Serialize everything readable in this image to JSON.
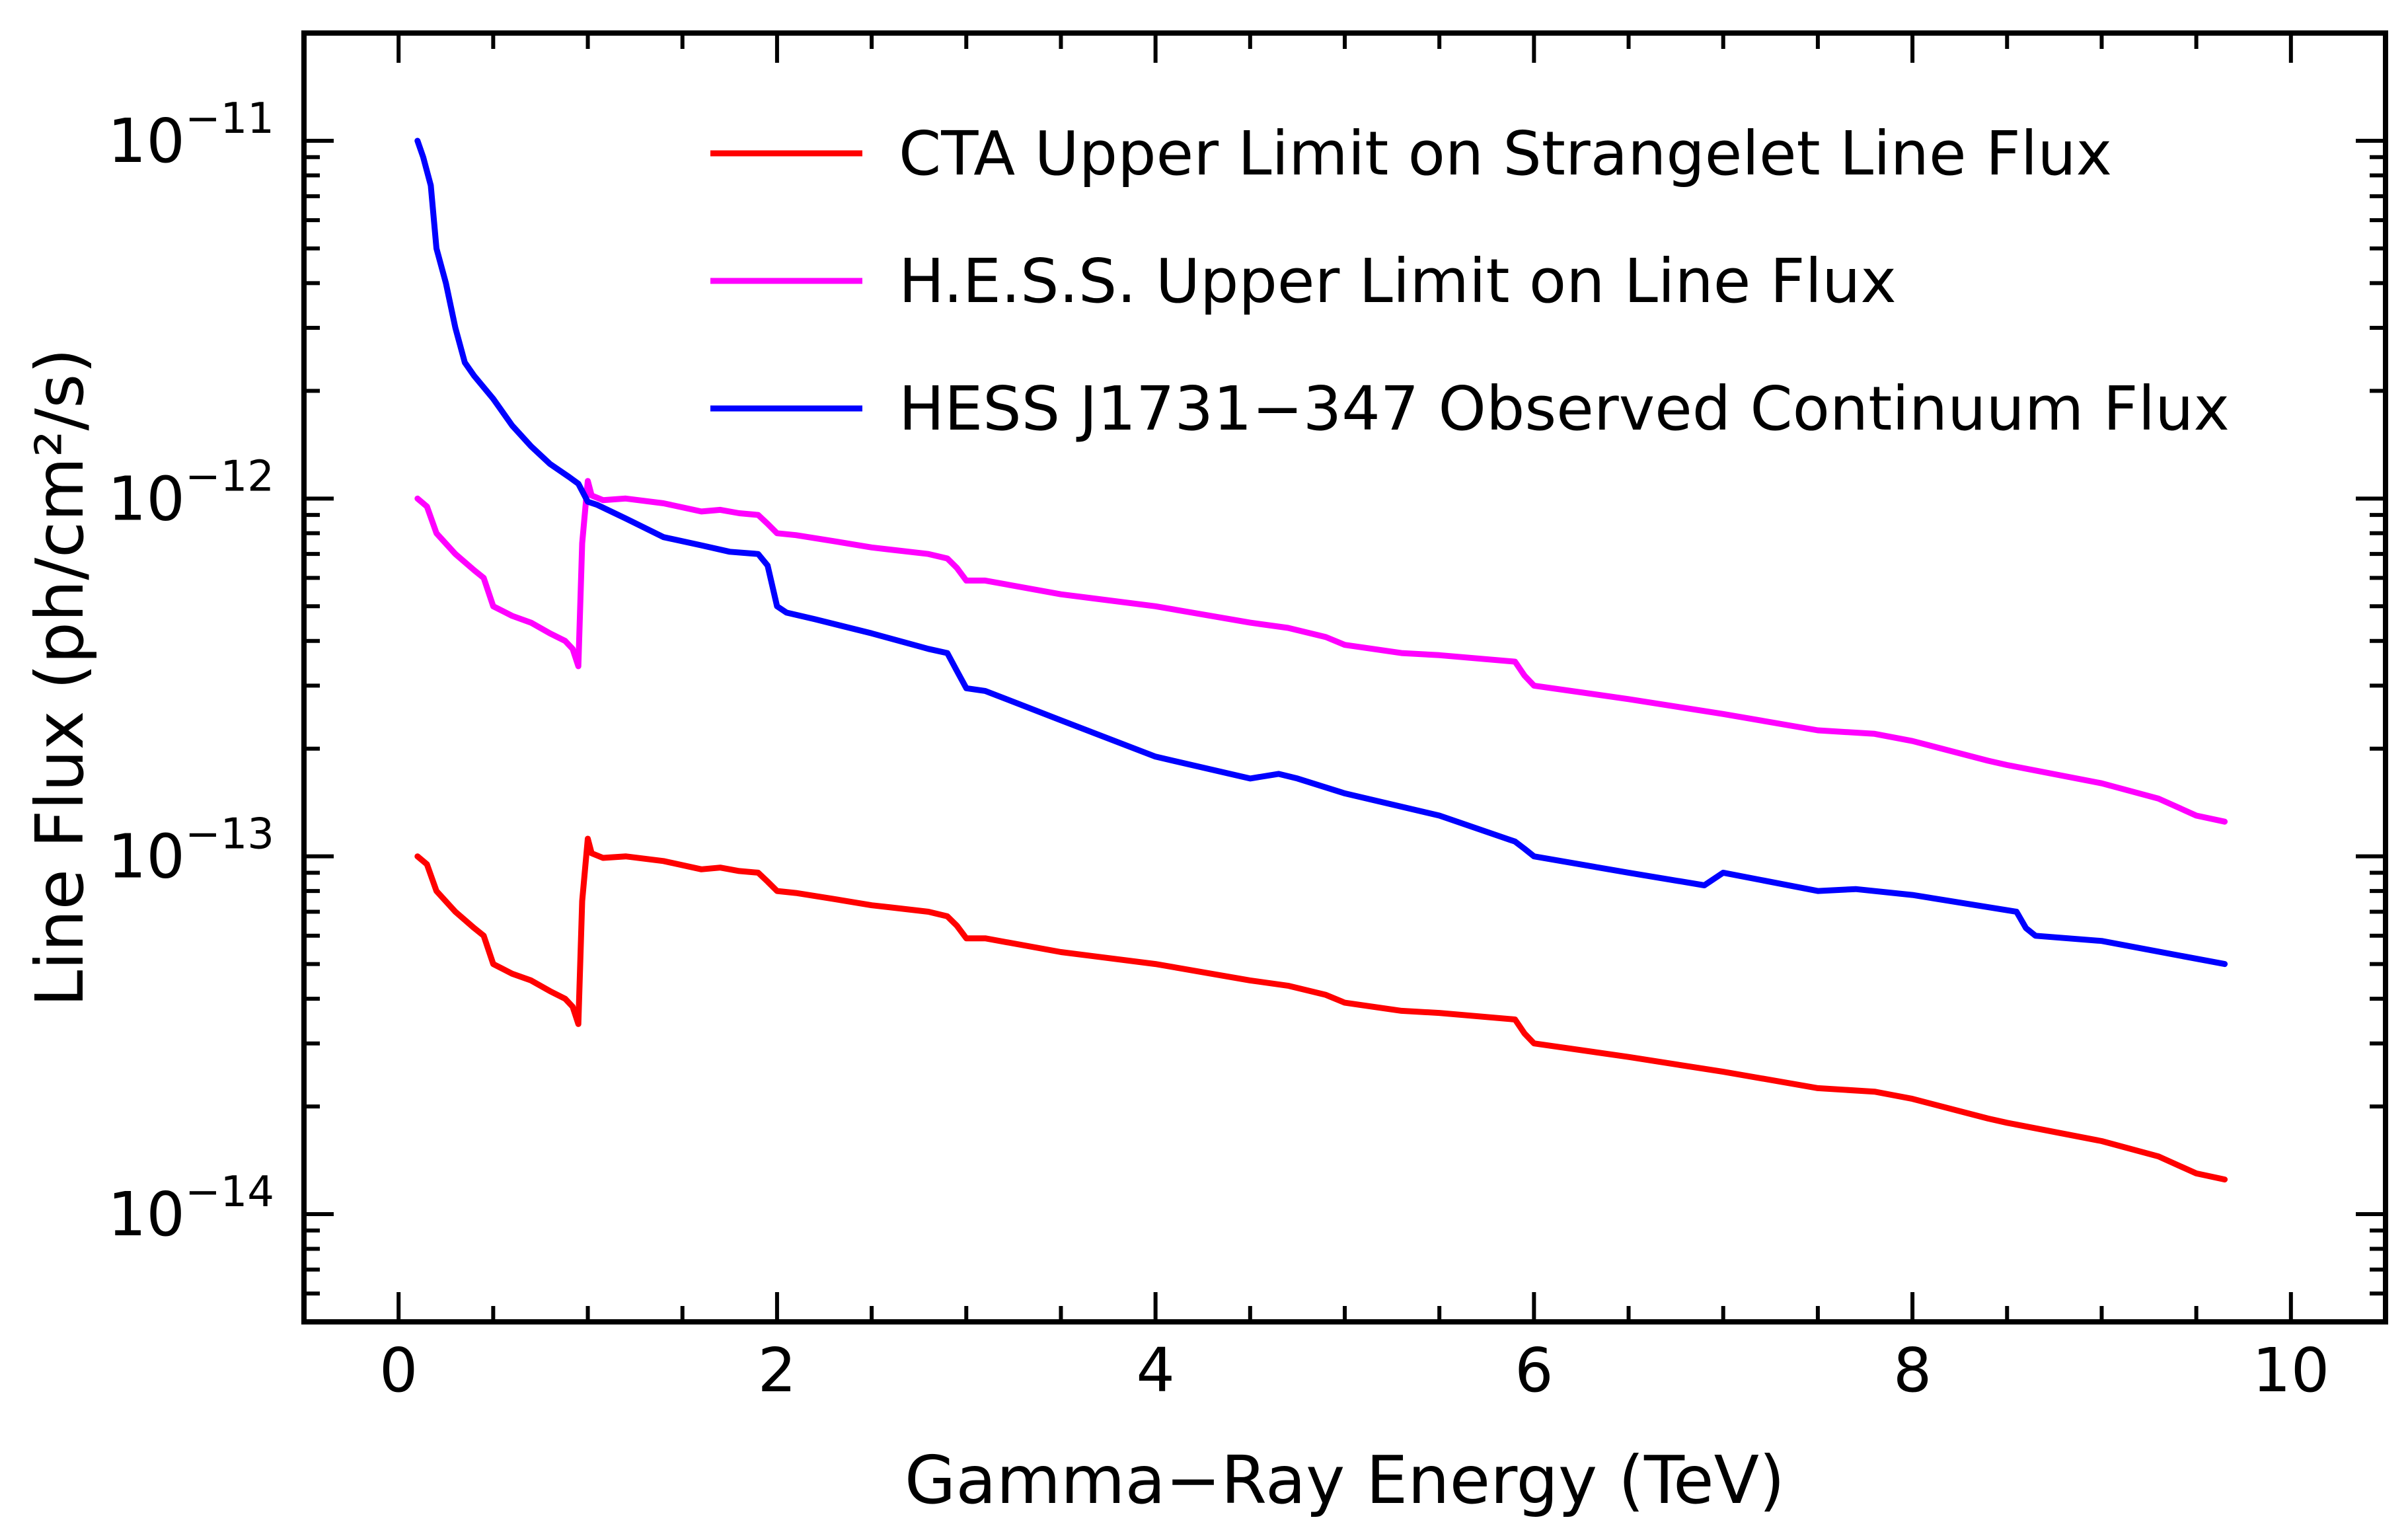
{
  "chart_data": {
    "type": "line",
    "title": "",
    "xlabel": "Gamma−Ray Energy (TeV)",
    "ylabel": "Line Flux (ph/cm²/s)",
    "xlim": [
      -0.5,
      10.5
    ],
    "ylim": [
      5e-15,
      2e-11
    ],
    "yscale": "log",
    "grid": false,
    "legend_position": "top-right",
    "x_ticks": [
      {
        "value": 0,
        "label": "0"
      },
      {
        "value": 2,
        "label": "2"
      },
      {
        "value": 4,
        "label": "4"
      },
      {
        "value": 6,
        "label": "6"
      },
      {
        "value": 8,
        "label": "8"
      },
      {
        "value": 10,
        "label": "10"
      }
    ],
    "y_ticks": [
      {
        "value": 1e-11,
        "base": "10",
        "exponent": "−11"
      },
      {
        "value": 1e-12,
        "base": "10",
        "exponent": "−12"
      },
      {
        "value": 1e-13,
        "base": "10",
        "exponent": "−13"
      },
      {
        "value": 1e-14,
        "base": "10",
        "exponent": "−14"
      }
    ],
    "series": [
      {
        "name": "CTA Upper Limit on Strangelet Line Flux",
        "color": "#ff0000",
        "x": [
          0.1,
          0.15,
          0.2,
          0.3,
          0.4,
          0.45,
          0.5,
          0.6,
          0.7,
          0.8,
          0.88,
          0.92,
          0.95,
          0.97,
          1.0,
          1.02,
          1.08,
          1.2,
          1.4,
          1.6,
          1.7,
          1.8,
          1.9,
          1.95,
          2.0,
          2.1,
          2.3,
          2.5,
          2.6,
          2.8,
          2.9,
          2.95,
          3.0,
          3.1,
          3.5,
          4.0,
          4.5,
          4.7,
          4.9,
          5.0,
          5.3,
          5.5,
          5.9,
          5.95,
          6.0,
          6.5,
          7.0,
          7.5,
          7.8,
          8.0,
          8.4,
          8.5,
          9.0,
          9.3,
          9.5,
          9.65
        ],
        "y": [
          1e-13,
          9.5e-14,
          8e-14,
          7e-14,
          6.3e-14,
          6e-14,
          5e-14,
          4.7e-14,
          4.5e-14,
          4.2e-14,
          4e-14,
          3.8e-14,
          3.4e-14,
          7.5e-14,
          1.12e-13,
          1.02e-13,
          9.9e-14,
          1e-13,
          9.7e-14,
          9.2e-14,
          9.3e-14,
          9.1e-14,
          9e-14,
          8.5e-14,
          8e-14,
          7.9e-14,
          7.6e-14,
          7.3e-14,
          7.2e-14,
          7e-14,
          6.8e-14,
          6.4e-14,
          5.9e-14,
          5.9e-14,
          5.4e-14,
          5e-14,
          4.5e-14,
          4.35e-14,
          4.1e-14,
          3.9e-14,
          3.7e-14,
          3.65e-14,
          3.5e-14,
          3.2e-14,
          3e-14,
          2.75e-14,
          2.5e-14,
          2.25e-14,
          2.2e-14,
          2.1e-14,
          1.85e-14,
          1.8e-14,
          1.6e-14,
          1.45e-14,
          1.3e-14,
          1.25e-14
        ]
      },
      {
        "name": "H.E.S.S. Upper Limit on Line Flux",
        "color": "#ff00ff",
        "x": [
          0.1,
          0.15,
          0.2,
          0.3,
          0.4,
          0.45,
          0.5,
          0.6,
          0.7,
          0.8,
          0.88,
          0.92,
          0.95,
          0.97,
          1.0,
          1.02,
          1.08,
          1.2,
          1.4,
          1.6,
          1.7,
          1.8,
          1.9,
          1.95,
          2.0,
          2.1,
          2.3,
          2.5,
          2.6,
          2.8,
          2.9,
          2.95,
          3.0,
          3.1,
          3.5,
          4.0,
          4.5,
          4.7,
          4.9,
          5.0,
          5.3,
          5.5,
          5.9,
          5.95,
          6.0,
          6.5,
          7.0,
          7.5,
          7.8,
          8.0,
          8.4,
          8.5,
          9.0,
          9.3,
          9.5,
          9.65
        ],
        "y": [
          1e-12,
          9.5e-13,
          8e-13,
          7e-13,
          6.3e-13,
          6e-13,
          5e-13,
          4.7e-13,
          4.5e-13,
          4.2e-13,
          4e-13,
          3.8e-13,
          3.4e-13,
          7.5e-13,
          1.12e-12,
          1.02e-12,
          9.9e-13,
          1e-12,
          9.7e-13,
          9.2e-13,
          9.3e-13,
          9.1e-13,
          9e-13,
          8.5e-13,
          8e-13,
          7.9e-13,
          7.6e-13,
          7.3e-13,
          7.2e-13,
          7e-13,
          6.8e-13,
          6.4e-13,
          5.9e-13,
          5.9e-13,
          5.4e-13,
          5e-13,
          4.5e-13,
          4.35e-13,
          4.1e-13,
          3.9e-13,
          3.7e-13,
          3.65e-13,
          3.5e-13,
          3.2e-13,
          3e-13,
          2.75e-13,
          2.5e-13,
          2.25e-13,
          2.2e-13,
          2.1e-13,
          1.85e-13,
          1.8e-13,
          1.6e-13,
          1.45e-13,
          1.3e-13,
          1.25e-13
        ]
      },
      {
        "name": "HESS J1731−347 Observed Continuum Flux",
        "color": "#0000ff",
        "x": [
          0.1,
          0.13,
          0.17,
          0.2,
          0.25,
          0.3,
          0.35,
          0.4,
          0.5,
          0.6,
          0.7,
          0.8,
          0.9,
          0.95,
          1.0,
          1.05,
          1.2,
          1.4,
          1.6,
          1.75,
          1.9,
          1.95,
          2.0,
          2.05,
          2.2,
          2.5,
          2.8,
          2.9,
          2.95,
          3.0,
          3.1,
          3.5,
          4.0,
          4.5,
          4.65,
          4.75,
          5.0,
          5.5,
          5.9,
          5.95,
          6.0,
          6.5,
          6.9,
          7.0,
          7.5,
          7.7,
          8.0,
          8.55,
          8.6,
          8.65,
          9.0,
          9.65
        ],
        "y": [
          1e-11,
          9e-12,
          7.5e-12,
          5e-12,
          4e-12,
          3e-12,
          2.4e-12,
          2.2e-12,
          1.9e-12,
          1.6e-12,
          1.4e-12,
          1.25e-12,
          1.15e-12,
          1.1e-12,
          9.8e-13,
          9.6e-13,
          8.8e-13,
          7.8e-13,
          7.4e-13,
          7.1e-13,
          7e-13,
          6.5e-13,
          5e-13,
          4.8e-13,
          4.6e-13,
          4.2e-13,
          3.8e-13,
          3.7e-13,
          3.3e-13,
          2.95e-13,
          2.9e-13,
          2.4e-13,
          1.9e-13,
          1.65e-13,
          1.7e-13,
          1.65e-13,
          1.5e-13,
          1.3e-13,
          1.1e-13,
          1.05e-13,
          1e-13,
          9e-14,
          8.3e-14,
          9e-14,
          8e-14,
          8.1e-14,
          7.8e-14,
          7e-14,
          6.3e-14,
          6e-14,
          5.8e-14,
          5e-14
        ]
      }
    ]
  }
}
